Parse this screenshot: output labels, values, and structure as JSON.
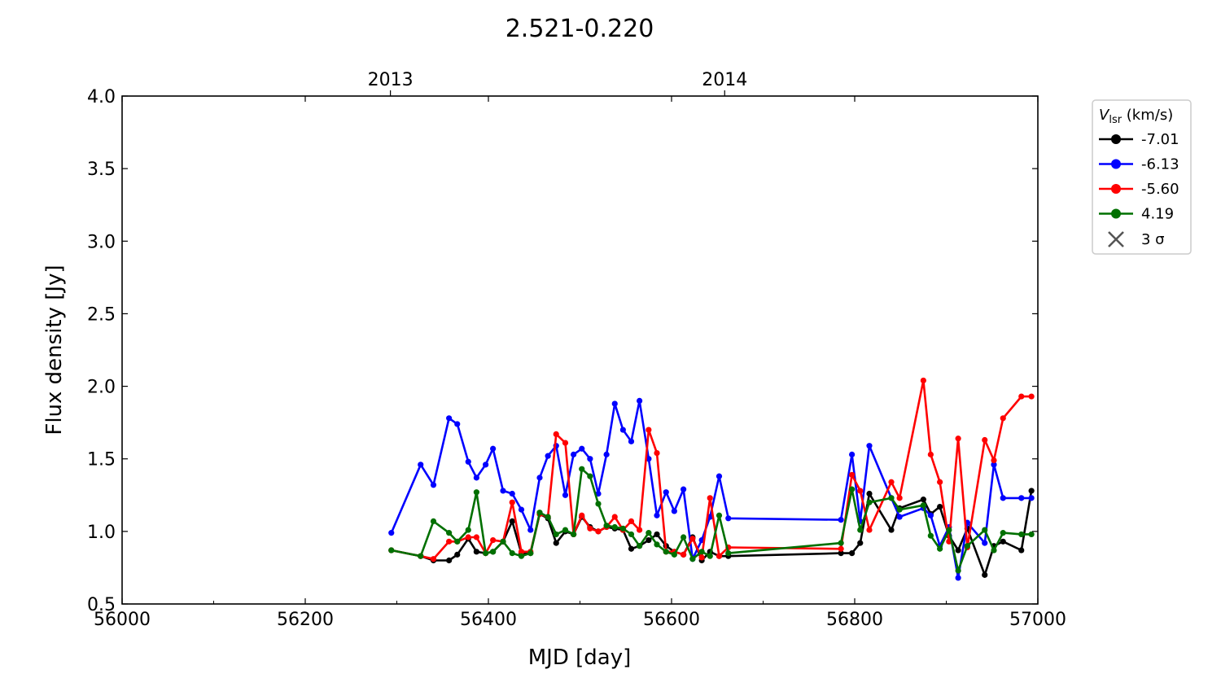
{
  "chart_data": {
    "type": "line",
    "title": "2.521-0.220",
    "xlabel": "MJD [day]",
    "ylabel": "Flux density [Jy]",
    "xlim": [
      56000,
      57000
    ],
    "ylim": [
      0.5,
      4.0
    ],
    "x_ticks": [
      "56000",
      "56200",
      "56400",
      "56600",
      "56800",
      "57000"
    ],
    "y_ticks": [
      "0.5",
      "1.0",
      "1.5",
      "2.0",
      "2.5",
      "3.0",
      "3.5",
      "4.0"
    ],
    "top_axis": {
      "labels": [
        {
          "label": "2013",
          "mjd": 56293
        },
        {
          "label": "2014",
          "mjd": 56658
        }
      ]
    },
    "grid": false,
    "legend": {
      "title_main": "V",
      "title_sub": "lsr",
      "title_unit": " (km/s)",
      "placement": "outside-right",
      "sigma_label": "3 σ"
    },
    "series": [
      {
        "name": "-7.01",
        "color": "#000000",
        "x": [
          56294,
          56326,
          56340,
          56357,
          56366,
          56378,
          56387,
          56397,
          56405,
          56416,
          56426,
          56436,
          56446,
          56456,
          56465,
          56474,
          56484,
          56493,
          56502,
          56511,
          56520,
          56529,
          56538,
          56547,
          56556,
          56565,
          56575,
          56584,
          56594,
          56603,
          56613,
          56623,
          56633,
          56642,
          56652,
          56662,
          56785,
          56797,
          56806,
          56816,
          56840,
          56849,
          56875,
          56883,
          56893,
          56903,
          56913,
          56923,
          56942,
          56952,
          56962,
          56982,
          56993
        ],
        "y": [
          0.87,
          0.83,
          0.8,
          0.8,
          0.84,
          0.95,
          0.86,
          0.85,
          0.86,
          0.93,
          1.07,
          0.85,
          0.85,
          1.12,
          1.09,
          0.92,
          1.0,
          0.98,
          1.1,
          1.03,
          1.0,
          1.03,
          1.02,
          1.01,
          0.88,
          0.9,
          0.94,
          0.98,
          0.9,
          0.86,
          0.84,
          0.96,
          0.8,
          0.86,
          0.83,
          0.83,
          0.85,
          0.85,
          0.92,
          1.26,
          1.01,
          1.16,
          1.22,
          1.12,
          1.17,
          0.97,
          0.87,
          1.02,
          0.7,
          0.9,
          0.93,
          0.87,
          1.28
        ]
      },
      {
        "name": "-6.13",
        "color": "#0000ff",
        "x": [
          56294,
          56326,
          56340,
          56357,
          56366,
          56378,
          56387,
          56397,
          56405,
          56416,
          56426,
          56436,
          56446,
          56456,
          56465,
          56474,
          56484,
          56493,
          56502,
          56511,
          56520,
          56529,
          56538,
          56547,
          56556,
          56565,
          56575,
          56584,
          56594,
          56603,
          56613,
          56623,
          56633,
          56642,
          56652,
          56662,
          56785,
          56797,
          56806,
          56816,
          56840,
          56849,
          56875,
          56883,
          56893,
          56903,
          56913,
          56923,
          56942,
          56952,
          56962,
          56982,
          56993
        ],
        "y": [
          0.99,
          1.46,
          1.32,
          1.78,
          1.74,
          1.48,
          1.37,
          1.46,
          1.57,
          1.28,
          1.26,
          1.15,
          1.01,
          1.37,
          1.52,
          1.59,
          1.25,
          1.53,
          1.57,
          1.5,
          1.26,
          1.53,
          1.88,
          1.7,
          1.62,
          1.9,
          1.5,
          1.11,
          1.27,
          1.14,
          1.29,
          0.81,
          0.94,
          1.1,
          1.38,
          1.09,
          1.08,
          1.53,
          1.07,
          1.59,
          1.23,
          1.1,
          1.16,
          1.11,
          0.9,
          1.03,
          0.68,
          1.06,
          0.92,
          1.46,
          1.23,
          1.23,
          1.23
        ]
      },
      {
        "name": "-5.60",
        "color": "#ff0000",
        "x": [
          56294,
          56326,
          56340,
          56357,
          56366,
          56378,
          56387,
          56397,
          56405,
          56416,
          56426,
          56436,
          56446,
          56456,
          56465,
          56474,
          56484,
          56493,
          56502,
          56511,
          56520,
          56529,
          56538,
          56547,
          56556,
          56565,
          56575,
          56584,
          56594,
          56603,
          56613,
          56623,
          56633,
          56642,
          56652,
          56662,
          56785,
          56797,
          56806,
          56816,
          56840,
          56849,
          56875,
          56883,
          56893,
          56903,
          56913,
          56923,
          56942,
          56952,
          56962,
          56982,
          56993
        ],
        "y": [
          0.87,
          0.83,
          0.81,
          0.93,
          0.93,
          0.96,
          0.96,
          0.85,
          0.94,
          0.93,
          1.2,
          0.86,
          0.86,
          1.12,
          1.1,
          1.67,
          1.61,
          0.98,
          1.11,
          1.02,
          1.0,
          1.03,
          1.1,
          1.01,
          1.07,
          1.01,
          1.7,
          1.54,
          0.86,
          0.86,
          0.84,
          0.95,
          0.82,
          1.23,
          0.83,
          0.89,
          0.88,
          1.39,
          1.28,
          1.01,
          1.34,
          1.23,
          2.04,
          1.53,
          1.34,
          0.93,
          1.64,
          0.89,
          1.63,
          1.49,
          1.78,
          1.93,
          1.93
        ]
      },
      {
        "name": "4.19",
        "color": "#007000",
        "x": [
          56294,
          56326,
          56340,
          56357,
          56366,
          56378,
          56387,
          56397,
          56405,
          56416,
          56426,
          56436,
          56446,
          56456,
          56465,
          56474,
          56484,
          56493,
          56502,
          56511,
          56520,
          56529,
          56538,
          56547,
          56556,
          56565,
          56575,
          56584,
          56594,
          56603,
          56613,
          56623,
          56633,
          56642,
          56652,
          56662,
          56785,
          56797,
          56806,
          56816,
          56840,
          56849,
          56875,
          56883,
          56893,
          56903,
          56913,
          56923,
          56942,
          56952,
          56962,
          56982,
          56993
        ],
        "y": [
          0.87,
          0.83,
          1.07,
          0.99,
          0.93,
          1.01,
          1.27,
          0.85,
          0.86,
          0.93,
          0.85,
          0.83,
          0.85,
          1.13,
          1.1,
          0.98,
          1.01,
          0.98,
          1.43,
          1.38,
          1.19,
          1.04,
          1.03,
          1.02,
          0.98,
          0.9,
          0.99,
          0.91,
          0.86,
          0.84,
          0.96,
          0.81,
          0.86,
          0.83,
          1.11,
          0.85,
          0.92,
          1.29,
          1.01,
          1.2,
          1.23,
          1.15,
          1.18,
          0.97,
          0.88,
          1.01,
          0.73,
          0.9,
          1.01,
          0.87,
          0.99,
          0.98,
          0.98
        ]
      }
    ]
  }
}
